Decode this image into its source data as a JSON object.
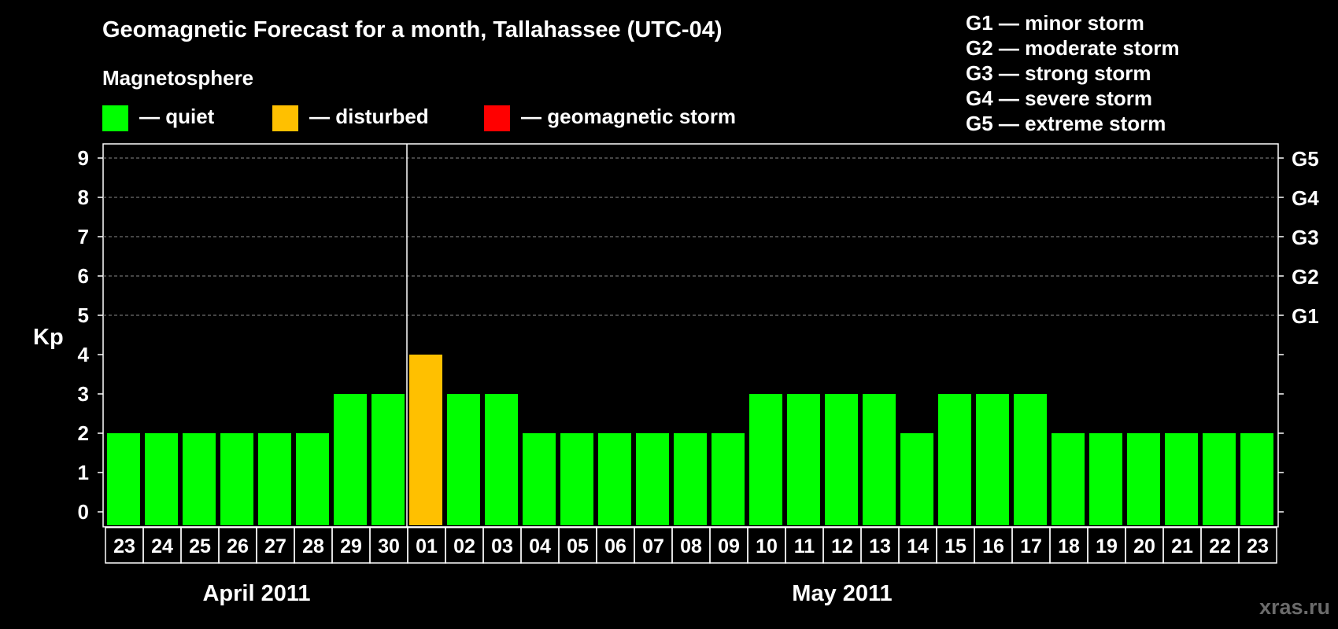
{
  "chart_data": {
    "type": "bar",
    "title": "Geomagnetic Forecast for a month, Tallahassee (UTC-04)",
    "subtitle": "Magnetosphere",
    "ylabel": "Kp",
    "ylim": [
      0,
      9
    ],
    "yticks": [
      "0",
      "1",
      "2",
      "3",
      "4",
      "5",
      "6",
      "7",
      "8",
      "9"
    ],
    "storm_axis": [
      {
        "kp": 5,
        "label": "G1"
      },
      {
        "kp": 6,
        "label": "G2"
      },
      {
        "kp": 7,
        "label": "G3"
      },
      {
        "kp": 8,
        "label": "G4"
      },
      {
        "kp": 9,
        "label": "G5"
      }
    ],
    "legend": [
      {
        "key": "quiet",
        "label": "— quiet",
        "color": "#00ff00"
      },
      {
        "key": "disturbed",
        "label": "— disturbed",
        "color": "#ffc000"
      },
      {
        "key": "storm",
        "label": "— geomagnetic storm",
        "color": "#ff0000"
      }
    ],
    "storm_scale": [
      "G1 — minor storm",
      "G2 — moderate storm",
      "G3 — strong storm",
      "G4 — severe storm",
      "G5 — extreme storm"
    ],
    "categories": [
      "23",
      "24",
      "25",
      "26",
      "27",
      "28",
      "29",
      "30",
      "01",
      "02",
      "03",
      "04",
      "05",
      "06",
      "07",
      "08",
      "09",
      "10",
      "11",
      "12",
      "13",
      "14",
      "15",
      "16",
      "17",
      "18",
      "19",
      "20",
      "21",
      "22",
      "23"
    ],
    "values": [
      2,
      2,
      2,
      2,
      2,
      2,
      3,
      3,
      4,
      3,
      3,
      2,
      2,
      2,
      2,
      2,
      2,
      3,
      3,
      3,
      3,
      2,
      3,
      3,
      3,
      2,
      2,
      2,
      2,
      2,
      2
    ],
    "months": [
      {
        "label": "April 2011",
        "start": 0,
        "end": 7
      },
      {
        "label": "May 2011",
        "start": 8,
        "end": 30
      }
    ],
    "divider_after_index": 7
  },
  "watermark": "xras.ru"
}
